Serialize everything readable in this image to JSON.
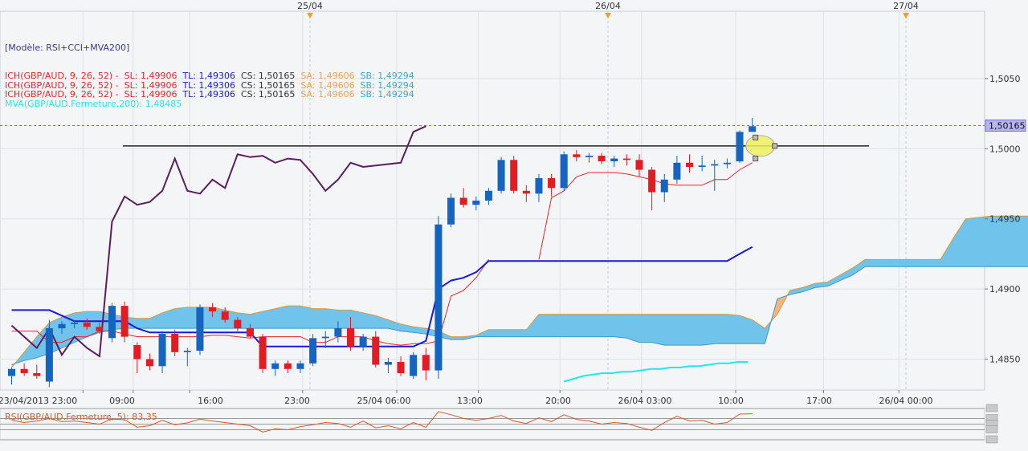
{
  "template_label": "[Modèle: RSI+CCI+MVA200]",
  "legend_rows": [
    {
      "prefix": "ICH(GBP/AUD, 9, 26, 52) -  SL: 1,49906",
      "tl": "TL: 1,49306",
      "cs": "CS: 1,50165",
      "sa": "SA: 1,49606",
      "sb": "SB: 1,49294",
      "prefix_color": "#e8262a"
    },
    {
      "prefix": "ICH(GBP/AUD, 9, 26, 52) -  SL: 1,49906",
      "tl": "TL: 1,49306",
      "cs": "CS: 1,50165",
      "sa": "SA: 1,49606",
      "sb": "SB: 1,49294",
      "prefix_color": "#e8262a"
    },
    {
      "prefix": "ICH(GBP/AUD, 9, 26, 52) -  SL: 1,49906",
      "tl": "TL: 1,49306",
      "cs": "CS: 1,50165",
      "sa": "SA: 1,49606",
      "sb": "SB: 1,49294",
      "prefix_color": "#e8262a"
    }
  ],
  "mva_label": "MVA(GBP/AUD.Fermeture,200): 1,48485",
  "rsi_label": "RSI(GBP/AUD.Fermeture, 5): 83,35",
  "colors": {
    "up": "#1565c0",
    "down": "#e31b23",
    "cloud_bull": "#70c3ea",
    "cloud_bear": "#f5b57f",
    "tenkan": "#e8262a",
    "kijun": "#1a1ad4",
    "chikou": "#5a1e5e",
    "mva": "#25e6ee",
    "current": "#7a68e8",
    "rsi": "#d65a2a",
    "resistance": "#222222"
  },
  "chart_data": {
    "type": "candlestick",
    "symbol": "GBP/AUD",
    "ylim": [
      1.4828,
      1.5098
    ],
    "y_ticks": [
      "1,4850",
      "1,4900",
      "1,4950",
      "1,5000",
      "1,5050"
    ],
    "x_ticks": [
      "23/04/2013 23:00",
      "09:00",
      "16:00",
      "23:00",
      "25/04 06:00",
      "13:00",
      "20:00",
      "26/04 03:00",
      "10:00",
      "17:00",
      "26/04 00:00"
    ],
    "date_markers": [
      "25/04",
      "26/04",
      "27/04"
    ],
    "current_price": 1.50165,
    "current_price_label": "1,50165",
    "resistance_level": 1.5002,
    "candles": [
      [
        1.4838,
        1.4844,
        1.4832,
        1.4843
      ],
      [
        1.4843,
        1.4847,
        1.4838,
        1.484
      ],
      [
        1.484,
        1.4846,
        1.4836,
        1.4838
      ],
      [
        1.4834,
        1.4878,
        1.483,
        1.4872
      ],
      [
        1.4872,
        1.4877,
        1.4868,
        1.4875
      ],
      [
        1.4875,
        1.4878,
        1.4872,
        1.4876
      ],
      [
        1.4876,
        1.4879,
        1.4871,
        1.4873
      ],
      [
        1.4873,
        1.4876,
        1.4868,
        1.487
      ],
      [
        1.4865,
        1.489,
        1.4862,
        1.4888
      ],
      [
        1.4888,
        1.4891,
        1.4862,
        1.4866
      ],
      [
        1.486,
        1.4862,
        1.484,
        1.485
      ],
      [
        1.485,
        1.4854,
        1.4842,
        1.4845
      ],
      [
        1.4845,
        1.487,
        1.484,
        1.4868
      ],
      [
        1.4868,
        1.4871,
        1.4852,
        1.4855
      ],
      [
        1.4855,
        1.4858,
        1.4845,
        1.4856
      ],
      [
        1.4856,
        1.4889,
        1.4853,
        1.4887
      ],
      [
        1.4887,
        1.489,
        1.488,
        1.4884
      ],
      [
        1.4884,
        1.4887,
        1.4876,
        1.4878
      ],
      [
        1.4878,
        1.488,
        1.487,
        1.4872
      ],
      [
        1.4872,
        1.4875,
        1.4865,
        1.4866
      ],
      [
        1.4866,
        1.4868,
        1.484,
        1.4843
      ],
      [
        1.4843,
        1.4849,
        1.4838,
        1.4847
      ],
      [
        1.4847,
        1.4849,
        1.484,
        1.4843
      ],
      [
        1.4843,
        1.4849,
        1.484,
        1.4847
      ],
      [
        1.4847,
        1.4868,
        1.4845,
        1.4865
      ],
      [
        1.4865,
        1.487,
        1.4858,
        1.4866
      ],
      [
        1.4866,
        1.4877,
        1.4862,
        1.4872
      ],
      [
        1.4872,
        1.488,
        1.4856,
        1.4859
      ],
      [
        1.4859,
        1.4868,
        1.4856,
        1.4866
      ],
      [
        1.4866,
        1.487,
        1.4844,
        1.4846
      ],
      [
        1.4846,
        1.4851,
        1.484,
        1.4848
      ],
      [
        1.4848,
        1.4852,
        1.4838,
        1.484
      ],
      [
        1.4838,
        1.4855,
        1.4836,
        1.4853
      ],
      [
        1.4853,
        1.4858,
        1.4835,
        1.4842
      ],
      [
        1.4842,
        1.4952,
        1.4836,
        1.4946
      ],
      [
        1.4946,
        1.4968,
        1.4944,
        1.4965
      ],
      [
        1.4965,
        1.4972,
        1.4958,
        1.496
      ],
      [
        1.496,
        1.4966,
        1.4956,
        1.4963
      ],
      [
        1.4963,
        1.4972,
        1.496,
        1.497
      ],
      [
        1.497,
        1.4994,
        1.4968,
        1.4992
      ],
      [
        1.4992,
        1.4995,
        1.4968,
        1.497
      ],
      [
        1.497,
        1.4974,
        1.4962,
        1.4968
      ],
      [
        1.4968,
        1.4982,
        1.4962,
        1.4979
      ],
      [
        1.4979,
        1.4982,
        1.4966,
        1.4972
      ],
      [
        1.4972,
        1.4998,
        1.497,
        1.4996
      ],
      [
        1.4996,
        1.4999,
        1.4991,
        1.4994
      ],
      [
        1.4994,
        1.4997,
        1.499,
        1.4995
      ],
      [
        1.4995,
        1.4997,
        1.4989,
        1.4991
      ],
      [
        1.4991,
        1.4995,
        1.4987,
        1.4993
      ],
      [
        1.4993,
        1.4996,
        1.4988,
        1.4992
      ],
      [
        1.4992,
        1.4996,
        1.498,
        1.4985
      ],
      [
        1.4985,
        1.4987,
        1.4956,
        1.4969
      ],
      [
        1.4969,
        1.4982,
        1.4962,
        1.4978
      ],
      [
        1.4978,
        1.4995,
        1.4975,
        1.499
      ],
      [
        1.499,
        1.4996,
        1.4983,
        1.4987
      ],
      [
        1.4987,
        1.4995,
        1.4984,
        1.4988
      ],
      [
        1.4988,
        1.4992,
        1.497,
        1.4989
      ],
      [
        1.4989,
        1.4993,
        1.4986,
        1.499
      ],
      [
        1.4991,
        1.5013,
        1.499,
        1.5012
      ],
      [
        1.5012,
        1.5022,
        1.5012,
        1.5016
      ]
    ],
    "series": [
      {
        "key": "senkou_a",
        "values": [
          1.4844,
          1.4855,
          1.4866,
          1.4876,
          1.488,
          1.4883,
          1.4884,
          1.4884,
          1.4882,
          1.488,
          1.4879,
          1.4879,
          1.4883,
          1.4886,
          1.4887,
          1.4887,
          1.4887,
          1.4885,
          1.4883,
          1.4882,
          1.4884,
          1.4886,
          1.4888,
          1.4888,
          1.4886,
          1.4886,
          1.4885,
          1.4885,
          1.4883,
          1.4881,
          1.4878,
          1.4875,
          1.4873,
          1.4872,
          1.487,
          1.4866,
          1.4866,
          1.4867,
          1.4871,
          1.4871,
          1.4871,
          1.4871,
          1.4882,
          1.4882,
          1.4882,
          1.4882,
          1.4882,
          1.4882,
          1.4882,
          1.4882,
          1.4882,
          1.4882,
          1.4882,
          1.4882,
          1.4882,
          1.4882,
          1.4882,
          1.4882,
          1.4881,
          1.4878,
          1.4872,
          1.4882,
          1.4899,
          1.4901,
          1.4904,
          1.4905,
          1.491,
          1.4915,
          1.4921,
          1.4921,
          1.4921,
          1.4921,
          1.4921,
          1.4921,
          1.4921,
          1.4936,
          1.495,
          1.4951,
          1.4952,
          1.4952,
          1.4952,
          1.4952,
          1.4952,
          1.4953,
          1.4952,
          1.4951,
          1.4951,
          1.4951
        ]
      },
      {
        "key": "senkou_b",
        "values": [
          1.4846,
          1.4849,
          1.4851,
          1.4854,
          1.4858,
          1.4862,
          1.4866,
          1.4869,
          1.4871,
          1.4872,
          1.4872,
          1.4872,
          1.4872,
          1.4872,
          1.4872,
          1.4872,
          1.4872,
          1.4872,
          1.4872,
          1.4872,
          1.4872,
          1.4872,
          1.4872,
          1.4872,
          1.4872,
          1.4872,
          1.4872,
          1.4872,
          1.4872,
          1.4872,
          1.4872,
          1.487,
          1.4869,
          1.4868,
          1.4866,
          1.4864,
          1.4864,
          1.4866,
          1.4866,
          1.4866,
          1.4866,
          1.4866,
          1.4866,
          1.4866,
          1.4866,
          1.4866,
          1.4866,
          1.4866,
          1.4866,
          1.4865,
          1.4862,
          1.4862,
          1.486,
          1.486,
          1.486,
          1.486,
          1.4861,
          1.4861,
          1.4861,
          1.4861,
          1.4861,
          1.4893,
          1.4896,
          1.4898,
          1.4901,
          1.4902,
          1.4906,
          1.491,
          1.4916,
          1.4916,
          1.4916,
          1.4916,
          1.4916,
          1.4916,
          1.4916,
          1.4916,
          1.4916,
          1.4916,
          1.4916,
          1.4916,
          1.4916,
          1.4916,
          1.4916,
          1.4916,
          1.4916,
          1.4916,
          1.4916,
          1.4916
        ]
      },
      {
        "key": "tenkan",
        "values": [
          1.487,
          1.487,
          1.487,
          1.4862,
          1.4862,
          1.4866,
          1.4866,
          1.487,
          1.487,
          1.4868,
          1.4866,
          1.4866,
          1.4866,
          1.4866,
          1.4866,
          1.4866,
          1.4867,
          1.4867,
          1.4866,
          1.4865,
          1.4866,
          1.4866,
          1.4866,
          1.4866,
          1.4862,
          1.4862,
          1.4866,
          1.4866,
          1.4866,
          1.4863,
          1.4861,
          1.486,
          1.4861,
          1.4861,
          1.4863,
          1.4895,
          1.4899,
          1.4908,
          1.4921,
          null,
          null,
          null,
          1.4921,
          1.4965,
          1.497,
          1.498,
          1.4983,
          1.4983,
          1.4983,
          1.4982,
          1.498,
          1.4978,
          1.4975,
          1.4974,
          1.4974,
          1.4974,
          1.4978,
          1.4978,
          1.4985,
          1.499
        ]
      },
      {
        "key": "kijun",
        "values": [
          1.4885,
          1.4885,
          1.4885,
          1.4885,
          1.4881,
          1.4877,
          1.4877,
          1.4877,
          1.4877,
          1.4877,
          1.4872,
          1.4869,
          1.4869,
          1.4869,
          1.4869,
          1.4869,
          1.4869,
          1.4869,
          1.4869,
          1.4869,
          1.4859,
          1.4859,
          1.4859,
          1.4859,
          1.4859,
          1.4859,
          1.4859,
          1.4859,
          1.4859,
          1.4859,
          1.4859,
          1.4859,
          1.4859,
          1.4863,
          1.49,
          1.4906,
          1.4908,
          1.4912,
          1.492,
          1.492,
          1.492,
          1.492,
          1.492,
          1.492,
          1.492,
          1.492,
          1.492,
          1.492,
          1.492,
          1.492,
          1.492,
          1.492,
          1.492,
          1.492,
          1.492,
          1.492,
          1.492,
          1.492,
          1.4925,
          1.493
        ]
      },
      {
        "key": "chikou",
        "values": [
          1.4874,
          1.4866,
          1.4858,
          1.4872,
          1.4853,
          1.4866,
          1.4858,
          1.4852,
          1.4948,
          1.4966,
          1.496,
          1.4962,
          1.497,
          1.4993,
          1.497,
          1.4968,
          1.4978,
          1.4972,
          1.4996,
          1.4994,
          1.4995,
          1.499,
          1.4993,
          1.4992,
          1.4982,
          1.497,
          1.4978,
          1.499,
          1.4987,
          1.4988,
          1.4989,
          1.499,
          1.5012,
          1.5016
        ]
      },
      {
        "key": "mva",
        "values": [
          1.4834,
          1.4836,
          1.4838,
          1.4839,
          1.484,
          1.484,
          1.4841,
          1.4841,
          1.4842,
          1.4843,
          1.4843,
          1.4844,
          1.4844,
          1.4845,
          1.4845,
          1.4846,
          1.4847,
          1.4847,
          1.4848,
          1.4848
        ]
      },
      {
        "key": "rsi",
        "values": [
          62,
          55,
          60,
          68,
          58,
          60,
          55,
          50,
          66,
          64,
          40,
          45,
          62,
          48,
          54,
          66,
          60,
          55,
          50,
          45,
          25,
          35,
          32,
          42,
          48,
          55,
          52,
          40,
          60,
          38,
          45,
          35,
          55,
          40,
          90,
          80,
          68,
          62,
          68,
          78,
          60,
          52,
          70,
          58,
          80,
          65,
          60,
          50,
          55,
          52,
          40,
          30,
          55,
          75,
          60,
          62,
          50,
          55,
          82,
          83
        ]
      }
    ]
  }
}
